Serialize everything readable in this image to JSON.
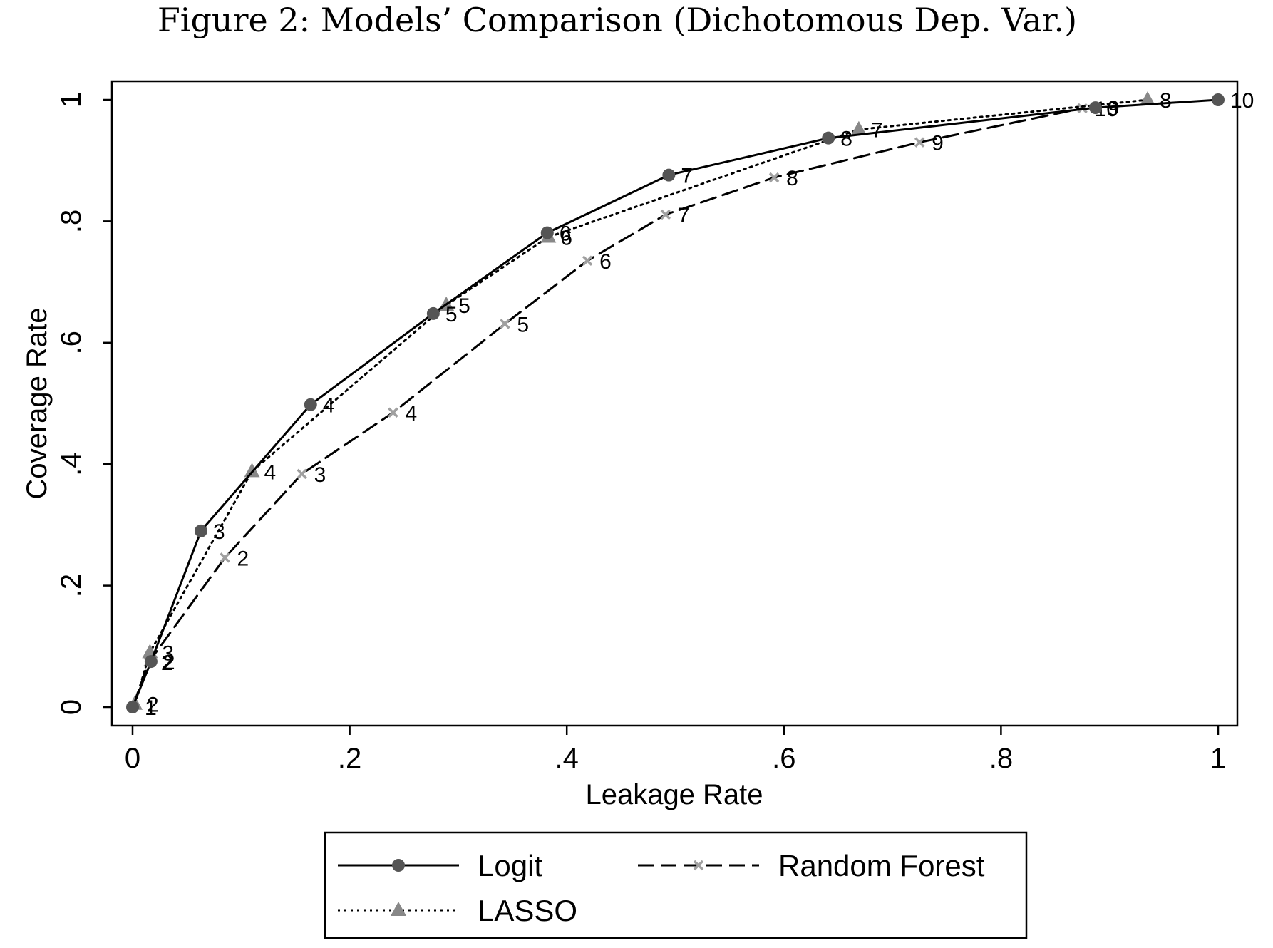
{
  "chart_data": {
    "type": "line",
    "title": "Figure 2:  Models’ Comparison (Dichotomous Dep.  Var.)",
    "xlabel": "Leakage Rate",
    "ylabel": "Coverage Rate",
    "xlim": [
      0,
      1
    ],
    "ylim": [
      0,
      1
    ],
    "xticks": [
      0,
      0.2,
      0.4,
      0.6,
      0.8,
      1
    ],
    "xtick_labels": [
      "0",
      ".2",
      ".4",
      ".6",
      ".8",
      "1"
    ],
    "yticks": [
      0,
      0.2,
      0.4,
      0.6,
      0.8,
      1
    ],
    "ytick_labels": [
      "0",
      ".2",
      ".4",
      ".6",
      ".8",
      "1"
    ],
    "grid": false,
    "legend_position": "bottom",
    "series": [
      {
        "name": "Logit",
        "line_style": "solid",
        "marker": "circle",
        "color": "#555555",
        "points": [
          {
            "x": 0.0,
            "y": 0.0,
            "label": "1"
          },
          {
            "x": 0.017,
            "y": 0.075,
            "label": "2"
          },
          {
            "x": 0.063,
            "y": 0.29,
            "label": "3"
          },
          {
            "x": 0.164,
            "y": 0.498,
            "label": "4"
          },
          {
            "x": 0.277,
            "y": 0.648,
            "label": "5"
          },
          {
            "x": 0.382,
            "y": 0.781,
            "label": "6"
          },
          {
            "x": 0.494,
            "y": 0.876,
            "label": "7"
          },
          {
            "x": 0.641,
            "y": 0.937,
            "label": "8"
          },
          {
            "x": 0.887,
            "y": 0.987,
            "label": "9"
          },
          {
            "x": 1.0,
            "y": 1.0,
            "label": "10"
          }
        ]
      },
      {
        "name": "LASSO",
        "line_style": "dotted",
        "marker": "triangle",
        "color": "#888888",
        "points": [
          {
            "x": 0.002,
            "y": 0.005,
            "label": "2"
          },
          {
            "x": 0.016,
            "y": 0.09,
            "label": "3"
          },
          {
            "x": 0.11,
            "y": 0.388,
            "label": "4"
          },
          {
            "x": 0.289,
            "y": 0.662,
            "label": "5"
          },
          {
            "x": 0.383,
            "y": 0.774,
            "label": "6"
          },
          {
            "x": 0.669,
            "y": 0.951,
            "label": "7"
          },
          {
            "x": 0.935,
            "y": 1.0,
            "label": "8"
          }
        ]
      },
      {
        "name": "Random Forest",
        "line_style": "dashed",
        "marker": "x",
        "color": "#a0a0a0",
        "points": [
          {
            "x": 0.0,
            "y": 0.0,
            "label": "1"
          },
          {
            "x": 0.015,
            "y": 0.074,
            "label": "2"
          },
          {
            "x": 0.085,
            "y": 0.246,
            "label": "2"
          },
          {
            "x": 0.156,
            "y": 0.384,
            "label": "3"
          },
          {
            "x": 0.24,
            "y": 0.485,
            "label": "4"
          },
          {
            "x": 0.343,
            "y": 0.631,
            "label": "5"
          },
          {
            "x": 0.419,
            "y": 0.735,
            "label": "6"
          },
          {
            "x": 0.491,
            "y": 0.811,
            "label": "7"
          },
          {
            "x": 0.591,
            "y": 0.872,
            "label": "8"
          },
          {
            "x": 0.725,
            "y": 0.93,
            "label": "9"
          },
          {
            "x": 0.875,
            "y": 0.986,
            "label": "10"
          }
        ]
      }
    ]
  },
  "legend": {
    "items": [
      {
        "label": "Logit",
        "series": 0
      },
      {
        "label": "Random Forest",
        "series": 2
      },
      {
        "label": "LASSO",
        "series": 1
      }
    ]
  }
}
